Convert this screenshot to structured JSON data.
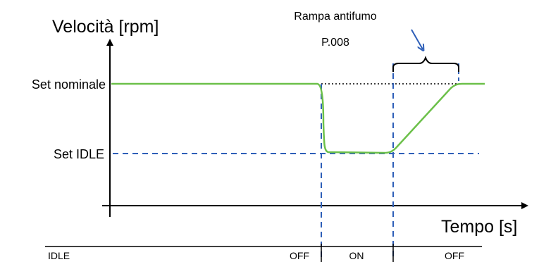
{
  "diagram": {
    "y_axis_label": "Velocità [rpm]",
    "x_axis_label": "Tempo [s]",
    "level_high": "Set nominale",
    "level_low": "Set IDLE",
    "annotation_line1": "Rampa antifumo",
    "annotation_line2": "P.008",
    "state_row_label": "IDLE",
    "states": [
      "OFF",
      "ON",
      "OFF"
    ],
    "colors": {
      "speed_curve": "#6cc04a",
      "guide_lines": "#2e5fb8",
      "reference_dots": "#000000",
      "arrow": "#2e5fb8"
    }
  }
}
